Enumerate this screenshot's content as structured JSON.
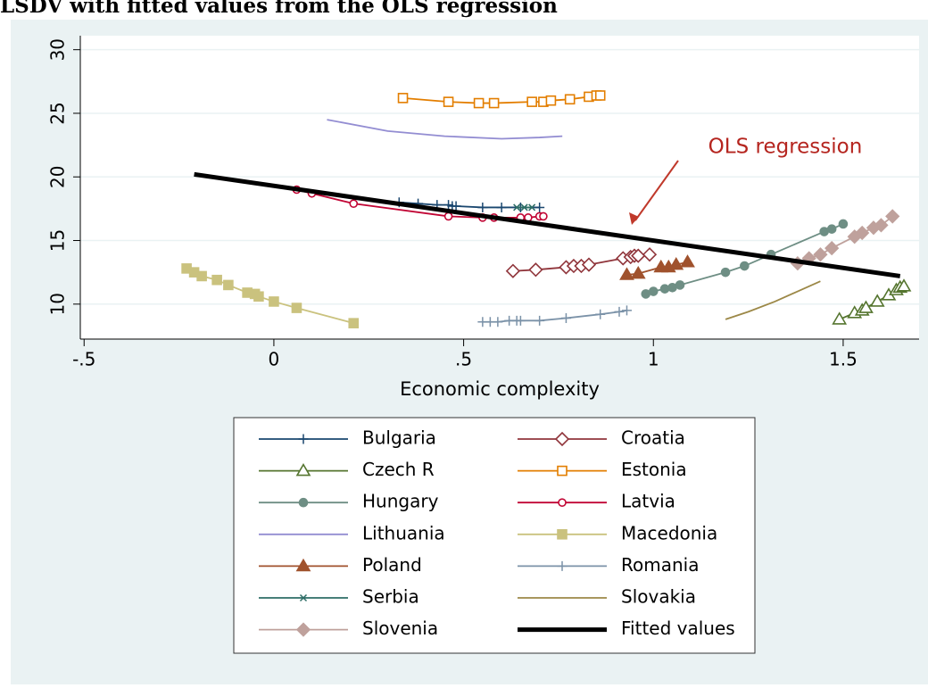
{
  "chart_data": {
    "type": "line",
    "title": "LSDV with fitted values from the OLS regression",
    "x_label": "Economic complexity",
    "xlim": [
      -0.51,
      1.7
    ],
    "ylim": [
      7.25,
      31.1
    ],
    "xticks": [
      {
        "value": -0.5,
        "label": "-.5"
      },
      0,
      {
        "value": 0.5,
        "label": ".5"
      },
      1,
      {
        "value": 1.5,
        "label": "1.5"
      }
    ],
    "yticks": [
      10,
      15,
      20,
      25,
      30
    ],
    "grid": true,
    "legend": "bottom",
    "annotation": "OLS regression",
    "series": [
      {
        "name": "Bulgaria",
        "color": "#1a476f",
        "marker": "plus",
        "x": [
          0.33,
          0.38,
          0.43,
          0.46,
          0.47,
          0.48,
          0.55,
          0.6,
          0.65,
          0.7
        ],
        "values": [
          18.0,
          17.9,
          17.8,
          17.8,
          17.7,
          17.7,
          17.6,
          17.6,
          17.6,
          17.6
        ]
      },
      {
        "name": "Croatia",
        "color": "#90353b",
        "marker": "diamond-hollow",
        "x": [
          0.63,
          0.69,
          0.77,
          0.79,
          0.81,
          0.83,
          0.92,
          0.94,
          0.95,
          0.96,
          0.99
        ],
        "values": [
          12.6,
          12.7,
          12.9,
          13.0,
          13.0,
          13.1,
          13.6,
          13.7,
          13.8,
          13.8,
          13.9
        ]
      },
      {
        "name": "Czech R",
        "color": "#55752f",
        "marker": "triangle-hollow",
        "x": [
          1.49,
          1.53,
          1.55,
          1.56,
          1.59,
          1.62,
          1.64,
          1.65,
          1.66
        ],
        "values": [
          8.8,
          9.3,
          9.5,
          9.7,
          10.2,
          10.7,
          11.1,
          11.3,
          11.4
        ]
      },
      {
        "name": "Estonia",
        "color": "#e37e00",
        "marker": "square-hollow",
        "x": [
          0.34,
          0.46,
          0.54,
          0.58,
          0.68,
          0.71,
          0.73,
          0.78,
          0.83,
          0.85,
          0.86
        ],
        "values": [
          26.2,
          25.9,
          25.8,
          25.8,
          25.9,
          25.9,
          26.0,
          26.1,
          26.3,
          26.4,
          26.4
        ]
      },
      {
        "name": "Hungary",
        "color": "#6e8e84",
        "marker": "circle",
        "x": [
          0.98,
          1.0,
          1.03,
          1.05,
          1.07,
          1.19,
          1.24,
          1.31,
          1.45,
          1.47,
          1.5
        ],
        "values": [
          10.8,
          11.0,
          11.2,
          11.3,
          11.5,
          12.5,
          13.0,
          13.9,
          15.7,
          15.9,
          16.3
        ]
      },
      {
        "name": "Latvia",
        "color": "#c10534",
        "marker": "circle-hollow",
        "x": [
          0.06,
          0.1,
          0.21,
          0.46,
          0.55,
          0.58,
          0.65,
          0.67,
          0.7,
          0.71
        ],
        "values": [
          19.0,
          18.7,
          17.9,
          16.9,
          16.8,
          16.8,
          16.8,
          16.8,
          16.9,
          16.9
        ]
      },
      {
        "name": "Lithuania",
        "color": "#938dd2",
        "marker": "none",
        "x": [
          0.14,
          0.3,
          0.45,
          0.6,
          0.7,
          0.76
        ],
        "values": [
          24.5,
          23.6,
          23.2,
          23.0,
          23.1,
          23.2
        ]
      },
      {
        "name": "Macedonia",
        "color": "#cac27e",
        "marker": "square",
        "x": [
          -0.23,
          -0.21,
          -0.19,
          -0.15,
          -0.12,
          -0.07,
          -0.05,
          -0.04,
          0,
          0.06,
          0.21
        ],
        "values": [
          12.8,
          12.5,
          12.2,
          11.9,
          11.5,
          10.9,
          10.8,
          10.6,
          10.2,
          9.7,
          8.5
        ]
      },
      {
        "name": "Poland",
        "color": "#a0522d",
        "marker": "triangle",
        "x": [
          0.93,
          0.96,
          1.02,
          1.04,
          1.06,
          1.09
        ],
        "values": [
          12.3,
          12.4,
          12.9,
          12.9,
          13.1,
          13.3
        ]
      },
      {
        "name": "Romania",
        "color": "#7b92a8",
        "marker": "plus",
        "x": [
          0.55,
          0.57,
          0.59,
          0.62,
          0.64,
          0.65,
          0.7,
          0.77,
          0.86,
          0.91,
          0.93
        ],
        "values": [
          8.6,
          8.6,
          8.6,
          8.7,
          8.7,
          8.7,
          8.7,
          8.9,
          9.2,
          9.4,
          9.5
        ]
      },
      {
        "name": "Serbia",
        "color": "#2d6d66",
        "marker": "x",
        "x": [
          0.64,
          0.66,
          0.68
        ],
        "values": [
          17.6,
          17.6,
          17.6
        ]
      },
      {
        "name": "Slovakia",
        "color": "#9c8847",
        "marker": "none",
        "x": [
          1.19,
          1.25,
          1.32,
          1.38,
          1.44
        ],
        "values": [
          8.8,
          9.4,
          10.2,
          11.0,
          11.8
        ]
      },
      {
        "name": "Slovenia",
        "color": "#bfa19c",
        "marker": "diamond",
        "x": [
          1.38,
          1.41,
          1.44,
          1.47,
          1.53,
          1.55,
          1.58,
          1.6,
          1.63
        ],
        "values": [
          13.2,
          13.6,
          13.9,
          14.4,
          15.3,
          15.6,
          16.0,
          16.2,
          16.9
        ]
      },
      {
        "name": "Fitted values",
        "color": "#000000",
        "marker": "none",
        "line_width": 5,
        "x": [
          -0.21,
          1.65
        ],
        "values": [
          20.2,
          12.2
        ]
      }
    ]
  }
}
